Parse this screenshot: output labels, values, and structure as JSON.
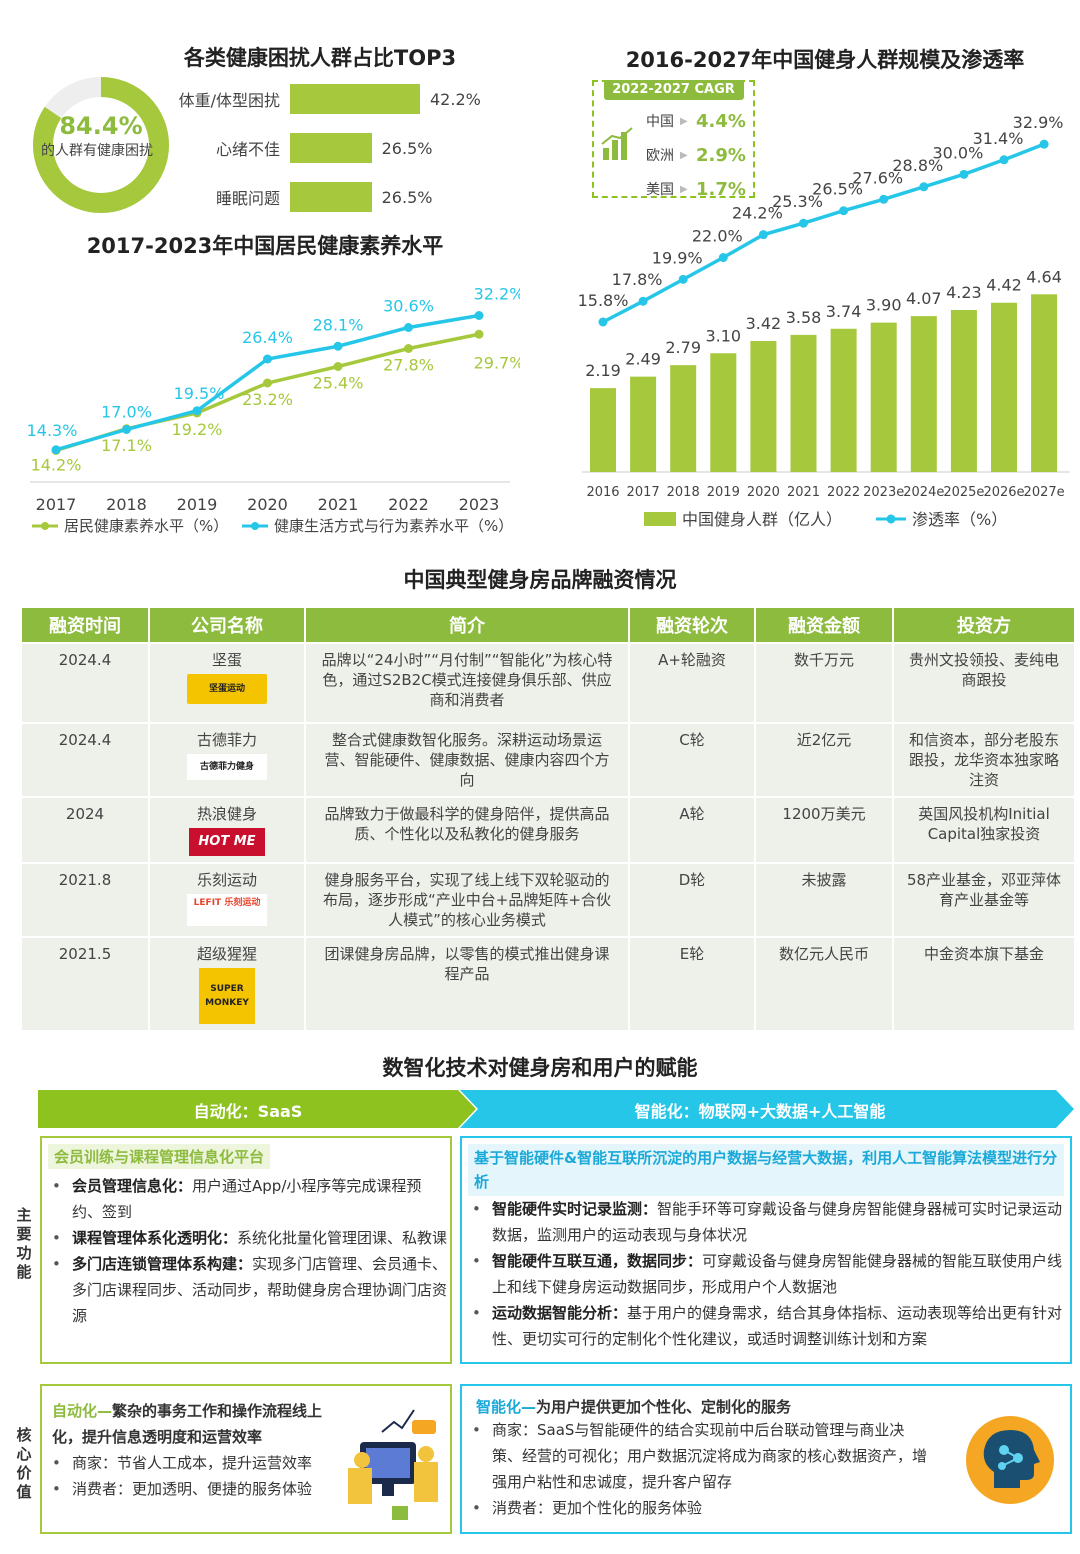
{
  "donut": {
    "percent": "84.4%",
    "caption": "的人群有健康困扰",
    "value": 84.4,
    "color": "#a6c83c"
  },
  "top3": {
    "title": "各类健康困扰人群占比TOP3",
    "chart_data": {
      "type": "bar",
      "title": "各类健康困扰人群占比TOP3",
      "categories": [
        "体重/体型困扰",
        "心绪不佳",
        "睡眠问题"
      ],
      "values": [
        42.2,
        26.5,
        26.5
      ],
      "value_labels": [
        "42.2%",
        "26.5%",
        "26.5%"
      ]
    }
  },
  "health": {
    "title": "2017-2023年中国居民健康素养水平",
    "chart_data": {
      "type": "line",
      "title": "2017-2023年中国居民健康素养水平",
      "x": [
        "2017",
        "2018",
        "2019",
        "2020",
        "2021",
        "2022",
        "2023"
      ],
      "series": [
        {
          "name": "居民健康素养水平（%）",
          "values": [
            14.2,
            17.1,
            19.2,
            23.2,
            25.4,
            27.8,
            29.7
          ],
          "labels": [
            "14.2%",
            "17.1%",
            "19.2%",
            "23.2%",
            "25.4%",
            "27.8%",
            "29.7%"
          ],
          "color": "#a6c83c"
        },
        {
          "name": "健康生活方式与行为素养水平（%）",
          "values": [
            14.3,
            17.0,
            19.5,
            26.4,
            28.1,
            30.6,
            32.2
          ],
          "labels": [
            "14.3%",
            "17.0%",
            "19.5%",
            "26.4%",
            "28.1%",
            "30.6%",
            "32.2%"
          ],
          "color": "#26c6e8"
        }
      ]
    }
  },
  "fitness": {
    "title": "2016-2027年中国健身人群规模及渗透率",
    "cagr": {
      "title": "2022-2027 CAGR",
      "rows": [
        {
          "label": "中国",
          "value": "4.4%"
        },
        {
          "label": "欧洲",
          "value": "2.9%"
        },
        {
          "label": "美国",
          "value": "1.7%"
        }
      ]
    },
    "chart_data": {
      "type": "bar",
      "title": "2016-2027年中国健身人群规模及渗透率",
      "categories": [
        "2016",
        "2017",
        "2018",
        "2019",
        "2020",
        "2021",
        "2022",
        "2023e",
        "2024e",
        "2025e",
        "2026e",
        "2027e"
      ],
      "series": [
        {
          "name": "中国健身人群（亿人）",
          "type": "bar",
          "values": [
            2.19,
            2.49,
            2.79,
            3.1,
            3.42,
            3.58,
            3.74,
            3.9,
            4.07,
            4.23,
            4.42,
            4.64
          ],
          "labels": [
            "2.19",
            "2.49",
            "2.79",
            "3.10",
            "3.42",
            "3.58",
            "3.74",
            "3.90",
            "4.07",
            "4.23",
            "4.42",
            "4.64"
          ],
          "color": "#a6c83c"
        },
        {
          "name": "渗透率（%）",
          "type": "line",
          "values": [
            15.8,
            17.8,
            19.9,
            22.0,
            24.2,
            25.3,
            26.5,
            27.6,
            28.8,
            30.0,
            31.4,
            32.9
          ],
          "labels": [
            "15.8%",
            "17.8%",
            "19.9%",
            "22.0%",
            "24.2%",
            "25.3%",
            "26.5%",
            "27.6%",
            "28.8%",
            "30.0%",
            "31.4%",
            "32.9%"
          ],
          "color": "#26c6e8"
        }
      ]
    }
  },
  "financing": {
    "title": "中国典型健身房品牌融资情况",
    "headers": [
      "融资时间",
      "公司名称",
      "简介",
      "融资轮次",
      "融资金额",
      "投资方"
    ],
    "rows": [
      {
        "time": "2024.4",
        "company": "坚蛋",
        "logo": "坚蛋运动",
        "intro": "品牌以“24小时”“月付制”“智能化”为核心特色，通过S2B2C模式连接健身俱乐部、供应商和消费者",
        "round": "A+轮融资",
        "amount": "数千万元",
        "investor": "贵州文投领投、麦纯电商跟投"
      },
      {
        "time": "2024.4",
        "company": "古德菲力",
        "logo": "古德菲力健身",
        "intro": "整合式健康数智化服务。深耕运动场景运营、智能硬件、健康数据、健康内容四个方向",
        "round": "C轮",
        "amount": "近2亿元",
        "investor": "和信资本，部分老股东跟投，龙华资本独家略注资"
      },
      {
        "time": "2024",
        "company": "热浪健身",
        "logo": "HOT ME",
        "intro": "品牌致力于做最科学的健身陪伴，提供高品质、个性化以及私教化的健身服务",
        "round": "A轮",
        "amount": "1200万美元",
        "investor": "英国风投机构Initial Capital独家投资"
      },
      {
        "time": "2021.8",
        "company": "乐刻运动",
        "logo": "LEFIT 乐刻运动",
        "intro": "健身服务平台，实现了线上线下双轮驱动的布局，逐步形成“产业中台+品牌矩阵+合伙人模式”的核心业务模式",
        "round": "D轮",
        "amount": "未披露",
        "investor": "58产业基金，邓亚萍体育产业基金等"
      },
      {
        "time": "2021.5",
        "company": "超级猩猩",
        "logo": "SUPER MONKEY",
        "intro": "团课健身房品牌，以零售的模式推出健身课程产品",
        "round": "E轮",
        "amount": "数亿元人民币",
        "investor": "中金资本旗下基金"
      }
    ]
  },
  "empower": {
    "title": "数智化技术对健身房和用户的赋能",
    "left_banner": "自动化：SaaS",
    "right_banner": "智能化：物联网+大数据+人工智能",
    "side_main": "主要功能",
    "side_core": "核心价值",
    "left_main": {
      "title": "会员训练与课程管理信息化平台",
      "items": [
        {
          "bold": "会员管理信息化：",
          "text": "用户通过App/小程序等完成课程预约、签到"
        },
        {
          "bold": "课程管理体系化透明化：",
          "text": "系统化批量化管理团课、私教课"
        },
        {
          "bold": "多门店连锁管理体系构建：",
          "text": "实现多门店管理、会员通卡、多门店课程同步、活动同步，帮助健身房合理协调门店资源"
        }
      ]
    },
    "right_main": {
      "title": "基于智能硬件&智能互联所沉淀的用户数据与经营大数据，利用人工智能算法模型进行分析",
      "items": [
        {
          "bold": "智能硬件实时记录监测：",
          "text": "智能手环等可穿戴设备与健身房智能健身器械可实时记录运动数据，监测用户的运动表现与身体状况"
        },
        {
          "bold": "智能硬件互联互通，数据同步：",
          "text": "可穿戴设备与健身房智能健身器械的智能互联使用户线上和线下健身房运动数据同步，形成用户个人数据池"
        },
        {
          "bold": "运动数据智能分析：",
          "text": "基于用户的健身需求，结合其身体指标、运动表现等给出更有针对性、更切实可行的定制化个性化建议，或适时调整训练计划和方案"
        }
      ]
    },
    "left_core": {
      "title_a": "自动化—",
      "title_b": "繁杂的事务工作和操作流程线上化，提升信息透明度和运营效率",
      "items": [
        "商家：节省人工成本，提升运营效率",
        "消费者：更加透明、便捷的服务体验"
      ]
    },
    "right_core": {
      "title_a": "智能化—",
      "title_b": "为用户提供更加个性化、定制化的服务",
      "items": [
        "商家：SaaS与智能硬件的结合实现前中后台联动管理与商业决策、经营的可视化；用户数据沉淀将成为商家的核心数据资产，增强用户粘性和忠诚度，提升客户留存",
        "消费者：更加个性化的服务体验"
      ]
    }
  }
}
